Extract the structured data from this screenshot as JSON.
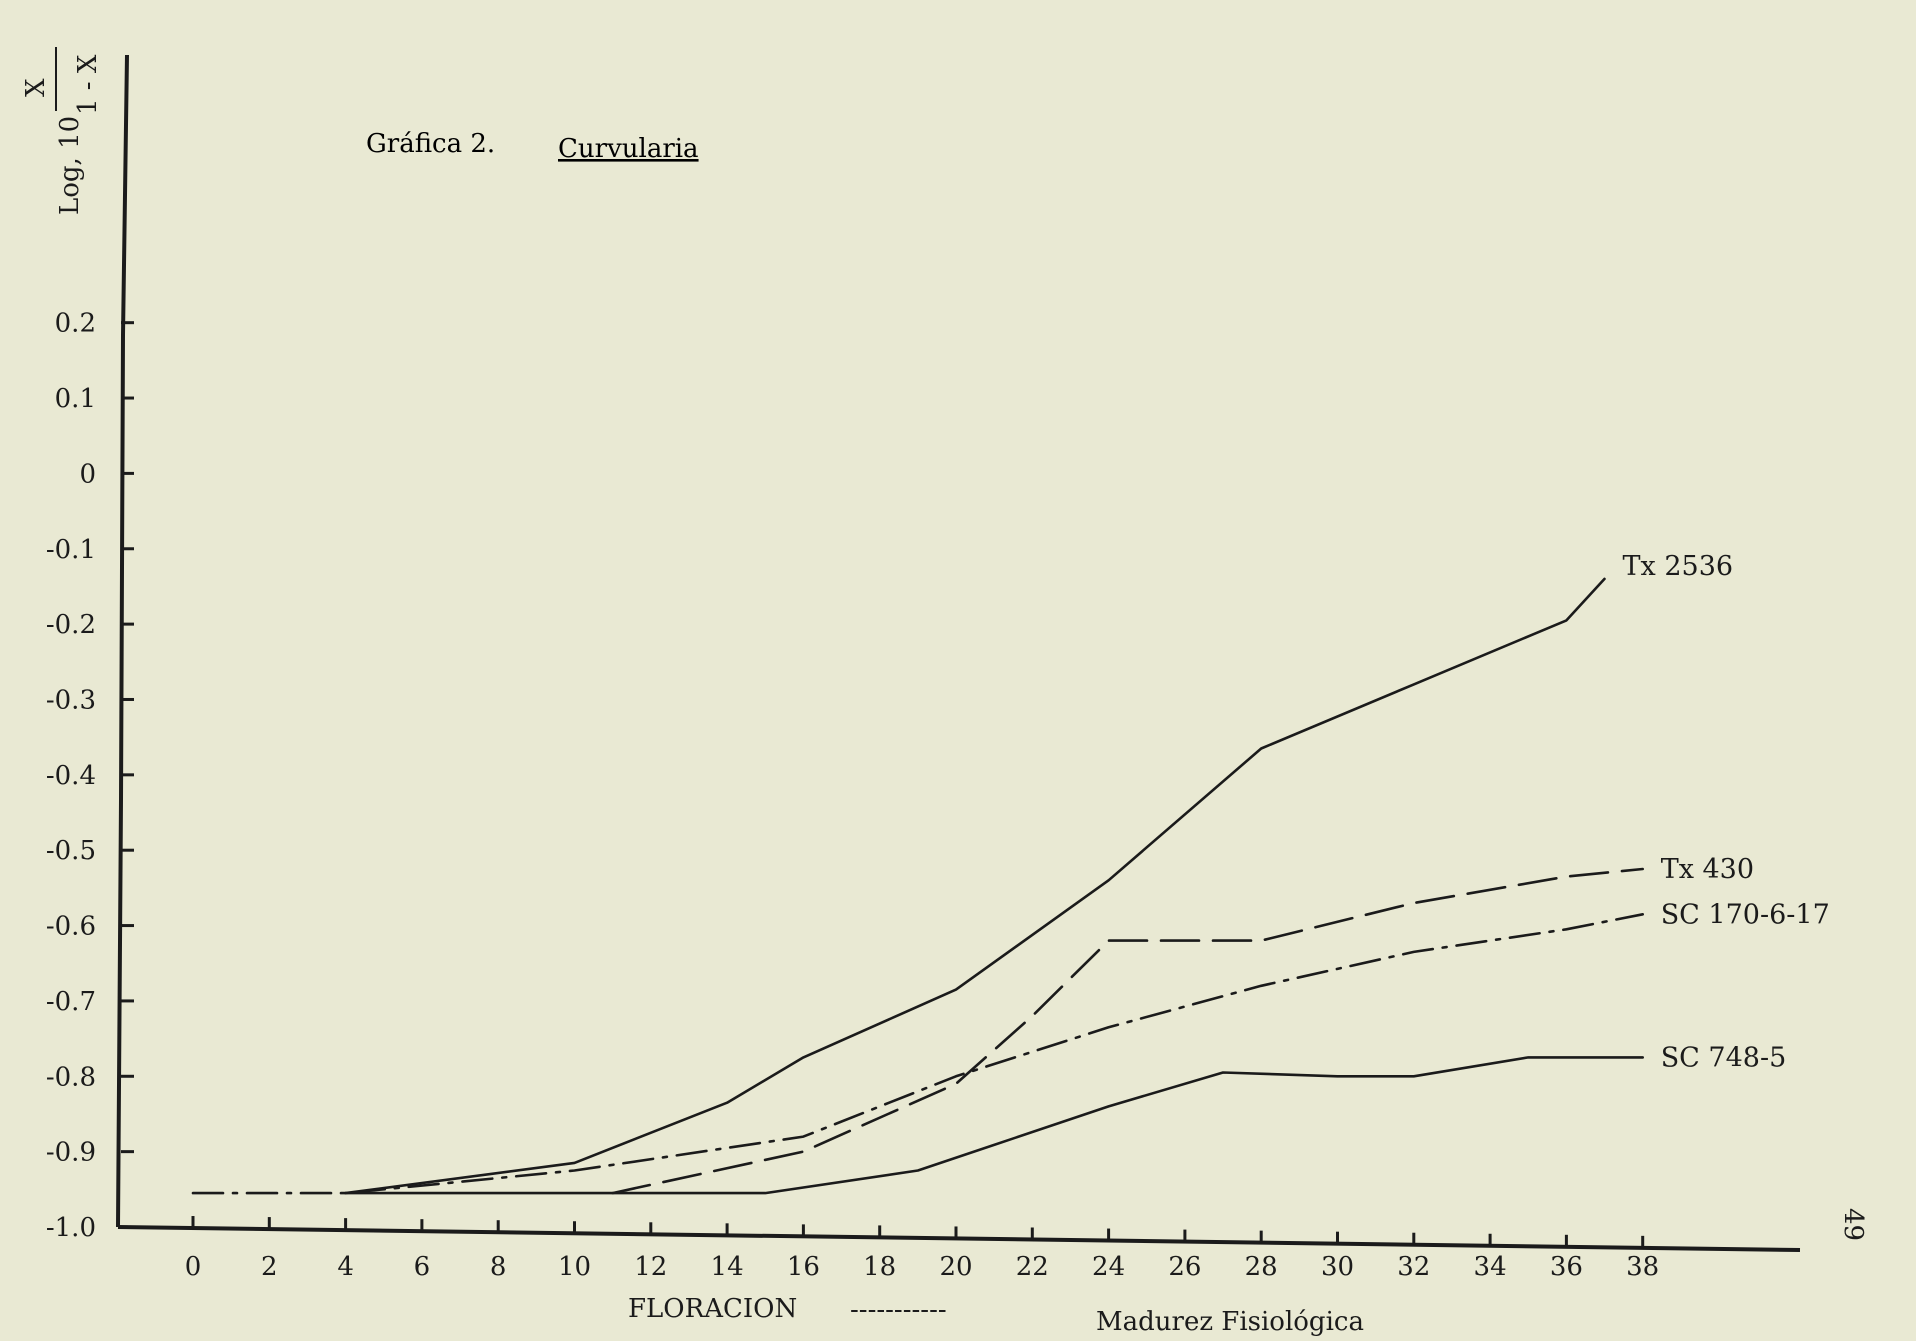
{
  "page_number": "49",
  "chart_data": {
    "type": "line",
    "title": {
      "prefix": "Gráfica 2.",
      "main": "Curvularia"
    },
    "ylabel": {
      "prefix": "Log, 10",
      "numerator": "X",
      "denominator": "1 - X"
    },
    "xlabel": {
      "start": "FLORACION",
      "dashes": "-----------",
      "end": "Madurez Fisiológica"
    },
    "x_ticks": [
      0,
      2,
      4,
      6,
      8,
      10,
      12,
      14,
      16,
      18,
      20,
      22,
      24,
      26,
      28,
      30,
      32,
      34,
      36,
      38
    ],
    "y_ticks": [
      "0.2",
      "0.1",
      "0",
      "-0.1",
      "-0.2",
      "-0.3",
      "-0.4",
      "-0.5",
      "-0.6",
      "-0.7",
      "-0.8",
      "-0.9",
      "-1.0"
    ],
    "xlim": [
      0,
      38
    ],
    "ylim": [
      -1.0,
      0.2
    ],
    "series": [
      {
        "name": "Tx 2536",
        "style": "solid",
        "points": [
          [
            4,
            -0.955
          ],
          [
            10,
            -0.915
          ],
          [
            14,
            -0.835
          ],
          [
            16,
            -0.775
          ],
          [
            20,
            -0.685
          ],
          [
            24,
            -0.54
          ],
          [
            28,
            -0.365
          ],
          [
            32,
            -0.28
          ],
          [
            36,
            -0.195
          ],
          [
            37,
            -0.14
          ]
        ]
      },
      {
        "name": "Tx 430",
        "style": "dashed",
        "points": [
          [
            11,
            -0.955
          ],
          [
            16,
            -0.9
          ],
          [
            20,
            -0.81
          ],
          [
            22,
            -0.72
          ],
          [
            24,
            -0.62
          ],
          [
            28,
            -0.62
          ],
          [
            32,
            -0.57
          ],
          [
            36,
            -0.535
          ],
          [
            38,
            -0.525
          ]
        ]
      },
      {
        "name": "SC 170-6-17",
        "style": "dashdot",
        "points": [
          [
            0,
            -0.955
          ],
          [
            4,
            -0.955
          ],
          [
            10,
            -0.925
          ],
          [
            16,
            -0.88
          ],
          [
            20,
            -0.8
          ],
          [
            24,
            -0.735
          ],
          [
            28,
            -0.68
          ],
          [
            32,
            -0.635
          ],
          [
            36,
            -0.605
          ],
          [
            38,
            -0.585
          ]
        ]
      },
      {
        "name": "SC 748-5",
        "style": "solid",
        "points": [
          [
            4,
            -0.955
          ],
          [
            15,
            -0.955
          ],
          [
            19,
            -0.925
          ],
          [
            24,
            -0.84
          ],
          [
            27,
            -0.795
          ],
          [
            30,
            -0.8
          ],
          [
            32,
            -0.8
          ],
          [
            35,
            -0.775
          ],
          [
            38,
            -0.775
          ]
        ]
      }
    ]
  }
}
